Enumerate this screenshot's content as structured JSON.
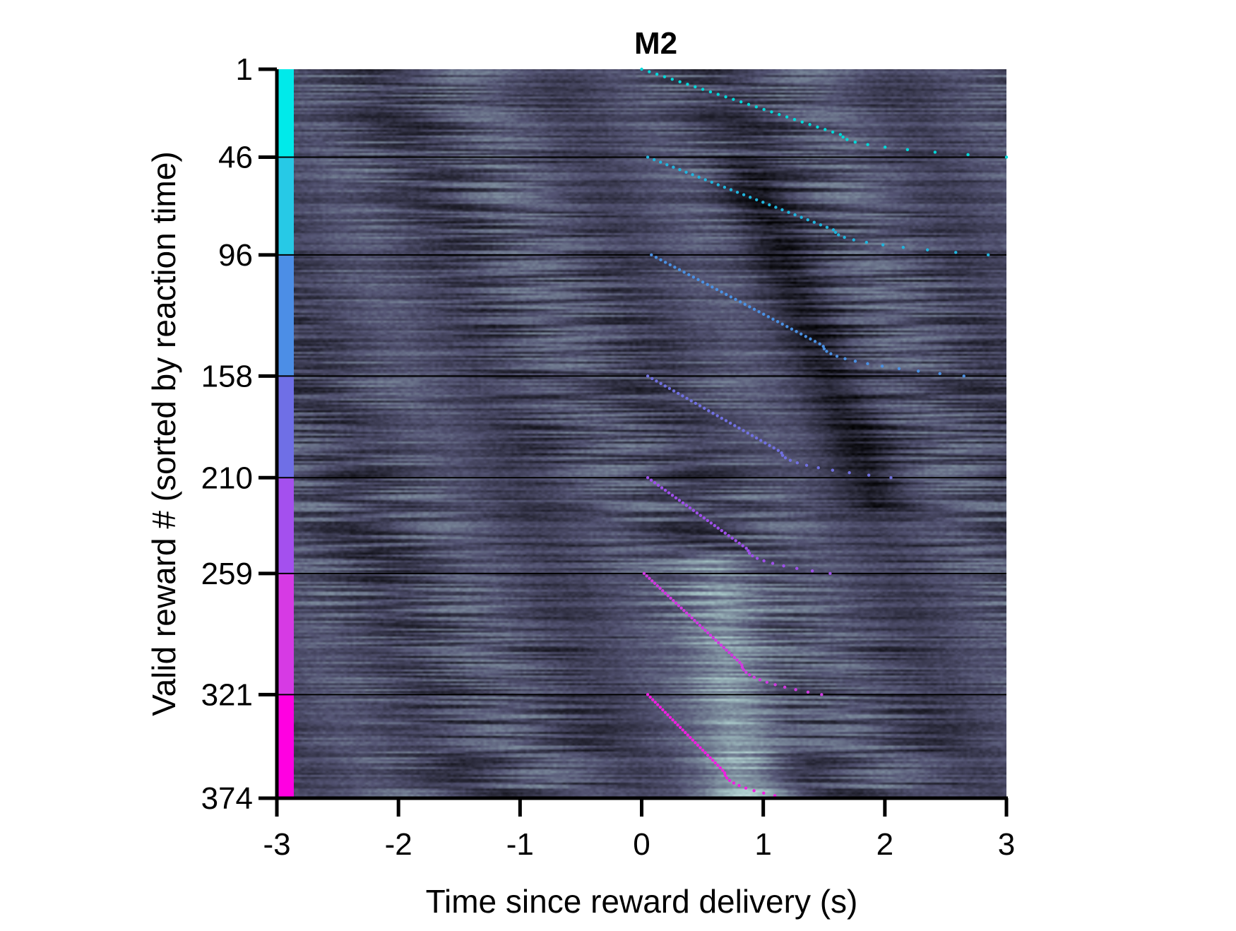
{
  "chart_data": {
    "type": "heatmap",
    "title": "M2",
    "xlabel": "Time since reward delivery (s)",
    "ylabel": "Valid reward # (sorted by reaction time)",
    "xlim": [
      -3,
      3
    ],
    "ylim": [
      1,
      374
    ],
    "x_ticks": [
      -3,
      -2,
      -1,
      0,
      1,
      2,
      3
    ],
    "x_tick_labels": [
      "-3",
      "-2",
      "-1",
      "0",
      "1",
      "2",
      "3"
    ],
    "y_ticks": [
      1,
      46,
      96,
      158,
      210,
      259,
      321,
      374
    ],
    "y_tick_labels": [
      "1",
      "46",
      "96",
      "158",
      "210",
      "259",
      "321",
      "374"
    ],
    "y_inverted": true,
    "colormap": "bone",
    "group_boundaries": [
      1,
      46,
      96,
      158,
      210,
      259,
      321,
      374
    ],
    "group_colors": [
      "#00eaea",
      "#27c9e6",
      "#4c8ee6",
      "#6f6fe6",
      "#a450ee",
      "#d63ae4",
      "#ff00e1"
    ],
    "reaction_time_markers": [
      {
        "group": 1,
        "color": "#00d8d8",
        "start_s": 0.0,
        "end_s": 3.0
      },
      {
        "group": 2,
        "color": "#20b4dc",
        "start_s": 0.05,
        "end_s": 2.85
      },
      {
        "group": 3,
        "color": "#4a90e2",
        "start_s": 0.08,
        "end_s": 2.65
      },
      {
        "group": 4,
        "color": "#7070e0",
        "start_s": 0.05,
        "end_s": 2.05
      },
      {
        "group": 5,
        "color": "#9e50ea",
        "start_s": 0.05,
        "end_s": 1.55
      },
      {
        "group": 6,
        "color": "#d03ae0",
        "start_s": 0.02,
        "end_s": 1.48
      },
      {
        "group": 7,
        "color": "#f020e0",
        "start_s": 0.05,
        "end_s": 1.2
      }
    ],
    "grid": false,
    "legend": "none"
  }
}
